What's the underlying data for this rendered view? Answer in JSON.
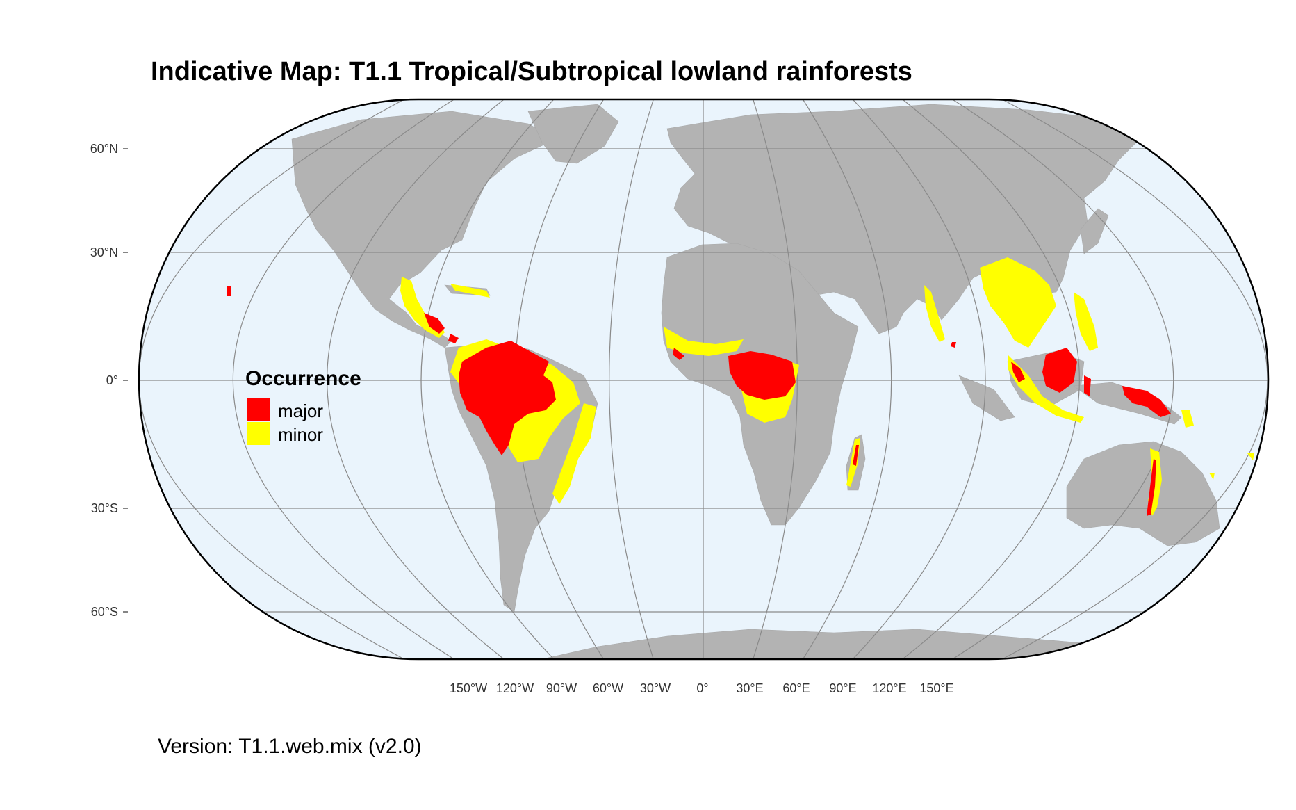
{
  "title": "Indicative Map: T1.1 Tropical/Subtropical lowland rainforests",
  "version": "Version: T1.1.web.mix (v2.0)",
  "colors": {
    "ocean": "#eaf4fc",
    "land": "#b3b3b3",
    "graticule": "#8a8a8a",
    "major": "#ff0000",
    "minor": "#ffff00",
    "outline": "#000000"
  },
  "legend": {
    "title": "Occurrence",
    "items": [
      {
        "label": "major",
        "color": "#ff0000"
      },
      {
        "label": "minor",
        "color": "#ffff00"
      }
    ]
  },
  "axes": {
    "lat_labels": [
      "60°N",
      "30°N",
      "0°",
      "30°S",
      "60°S"
    ],
    "lon_labels": [
      "150°W",
      "120°W",
      "90°W",
      "60°W",
      "30°W",
      "0°",
      "30°E",
      "60°E",
      "90°E",
      "120°E",
      "150°E"
    ]
  }
}
